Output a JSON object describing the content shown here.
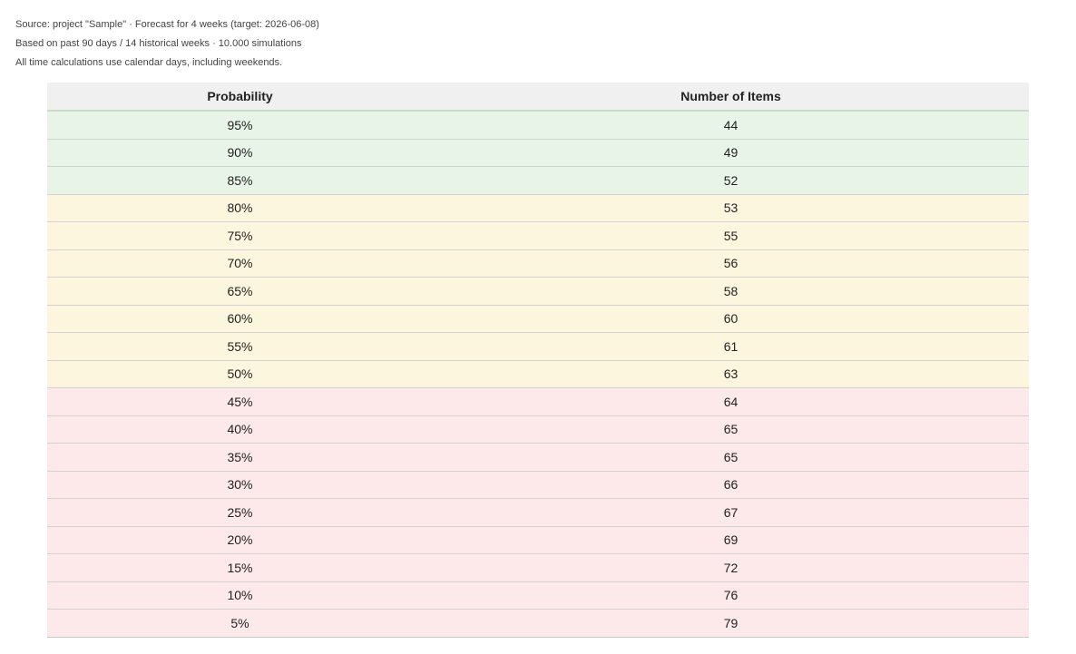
{
  "meta": {
    "line1": "Source: project \"Sample\" · Forecast for 4 weeks (target: 2026-06-08)",
    "line2": "Based on past 90 days / 14 historical weeks · 10.000 simulations",
    "line3": "All time calculations use calendar days, including weekends."
  },
  "table": {
    "headers": [
      "Probability",
      "Number of Items"
    ],
    "rows": [
      {
        "probability": "95%",
        "items": "44",
        "band": "green"
      },
      {
        "probability": "90%",
        "items": "49",
        "band": "green"
      },
      {
        "probability": "85%",
        "items": "52",
        "band": "green"
      },
      {
        "probability": "80%",
        "items": "53",
        "band": "yellow"
      },
      {
        "probability": "75%",
        "items": "55",
        "band": "yellow"
      },
      {
        "probability": "70%",
        "items": "56",
        "band": "yellow"
      },
      {
        "probability": "65%",
        "items": "58",
        "band": "yellow"
      },
      {
        "probability": "60%",
        "items": "60",
        "band": "yellow"
      },
      {
        "probability": "55%",
        "items": "61",
        "band": "yellow"
      },
      {
        "probability": "50%",
        "items": "63",
        "band": "yellow"
      },
      {
        "probability": "45%",
        "items": "64",
        "band": "red"
      },
      {
        "probability": "40%",
        "items": "65",
        "band": "red"
      },
      {
        "probability": "35%",
        "items": "65",
        "band": "red"
      },
      {
        "probability": "30%",
        "items": "66",
        "band": "red"
      },
      {
        "probability": "25%",
        "items": "67",
        "band": "red"
      },
      {
        "probability": "20%",
        "items": "69",
        "band": "red"
      },
      {
        "probability": "15%",
        "items": "72",
        "band": "red"
      },
      {
        "probability": "10%",
        "items": "76",
        "band": "red"
      },
      {
        "probability": "5%",
        "items": "79",
        "band": "red"
      }
    ]
  },
  "colors": {
    "green_band": "#e7f4e7",
    "yellow_band": "#fdf6df",
    "red_band": "#fde8ea",
    "header_bg": "#f0f0f1"
  }
}
